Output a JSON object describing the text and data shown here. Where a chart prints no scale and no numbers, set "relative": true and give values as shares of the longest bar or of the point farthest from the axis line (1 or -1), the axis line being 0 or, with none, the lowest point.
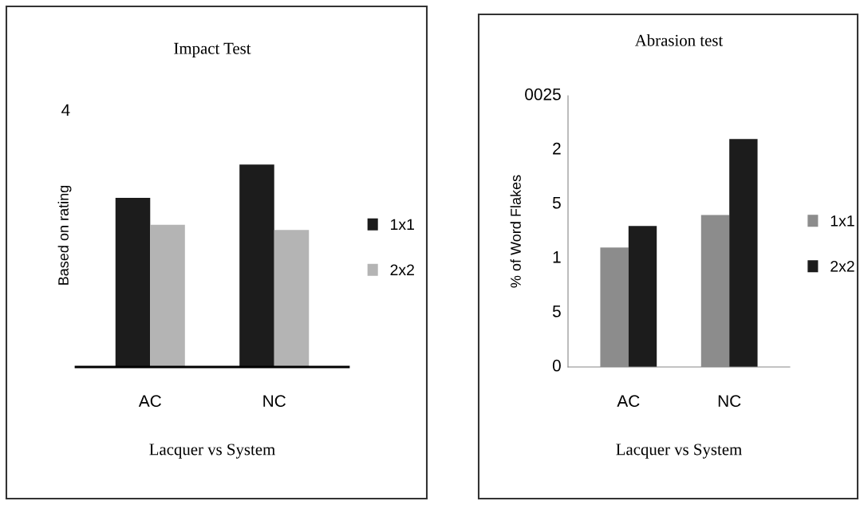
{
  "chart_data": [
    {
      "type": "bar",
      "title": "Impact Test",
      "xlabel": "Lacquer vs System",
      "ylabel": "Based on rating",
      "relative": true,
      "categories": [
        "AC",
        "NC"
      ],
      "series": [
        {
          "name": "1x1",
          "color": "#1c1c1c",
          "values": [
            0.835,
            1
          ]
        },
        {
          "name": "2x2",
          "color": "#b4b4b4",
          "values": [
            0.702,
            0.677
          ]
        }
      ],
      "annotations": [
        "4"
      ],
      "legend": "right",
      "grid": false
    },
    {
      "type": "bar",
      "title": "Abrasion test",
      "xlabel": "Lacquer vs System",
      "ylabel": "% of Word Flakes",
      "categories": [
        "AC",
        "NC"
      ],
      "series": [
        {
          "name": "1x1",
          "color": "#8c8c8c",
          "values": [
            0.524,
            0.667
          ]
        },
        {
          "name": "2x2",
          "color": "#1c1c1c",
          "values": [
            0.619,
            1
          ]
        }
      ],
      "relative": true,
      "annotations": [
        "0",
        "5",
        "1",
        "5",
        "2",
        "0025"
      ],
      "legend": "right",
      "grid": false
    }
  ]
}
